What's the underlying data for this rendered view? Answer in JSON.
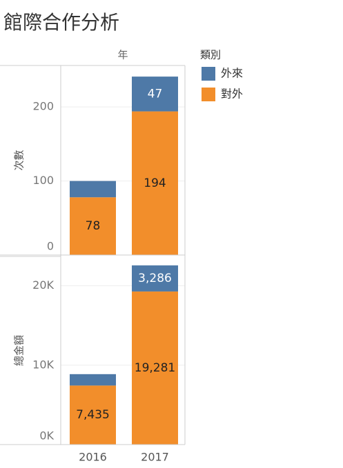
{
  "chart_data": {
    "type": "bar",
    "title": "館際合作分析",
    "x_label": "年",
    "legend_title": "類別",
    "categories": [
      "2016",
      "2017"
    ],
    "series": [
      {
        "name": "對外",
        "color": "#f28e2b"
      },
      {
        "name": "外來",
        "color": "#4e79a7"
      }
    ],
    "panels": [
      {
        "y_label": "次數",
        "ylim": [
          0,
          256
        ],
        "yticks": [
          0,
          100,
          200
        ],
        "values": [
          [
            78,
            194
          ],
          [
            22,
            47
          ]
        ],
        "value_labels": [
          [
            "78",
            "194"
          ],
          [
            null,
            "47"
          ]
        ]
      },
      {
        "y_label": "總金額",
        "ylim": [
          0,
          23700
        ],
        "yticks": [
          {
            "value": 0,
            "label": "0K"
          },
          {
            "value": 10000,
            "label": "10K"
          },
          {
            "value": 20000,
            "label": "20K"
          }
        ],
        "values": [
          [
            7435,
            19281
          ],
          [
            1435,
            3286
          ]
        ],
        "value_labels": [
          [
            "7,435",
            "19,281"
          ],
          [
            null,
            "3,286"
          ]
        ]
      }
    ],
    "grid": true
  }
}
